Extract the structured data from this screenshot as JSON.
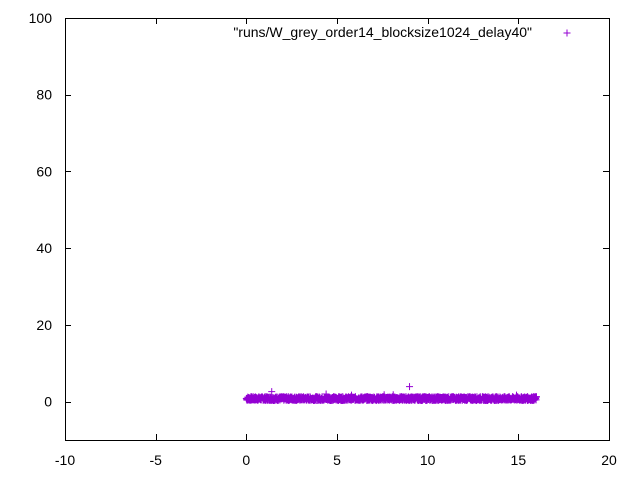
{
  "chart_data": {
    "type": "scatter",
    "xlim": [
      -10,
      20
    ],
    "ylim": [
      -10,
      100
    ],
    "xticks": [
      -10,
      -5,
      0,
      5,
      10,
      15,
      20
    ],
    "yticks": [
      0,
      20,
      40,
      60,
      80,
      100
    ],
    "xtick_labels": [
      "-10",
      "-5",
      "0",
      "5",
      "10",
      "15",
      "20"
    ],
    "ytick_labels": [
      "0",
      "20",
      "40",
      "60",
      "80",
      "100"
    ],
    "grid": false,
    "legend_position": "top-right",
    "series": [
      {
        "name": "\"runs/W_grey_order14_blocksize1024_delay40\"",
        "color": "#9400d3",
        "marker": "plus",
        "dense_band": {
          "x_range": [
            0.0,
            16.0
          ],
          "y_range": [
            0.3,
            1.3
          ]
        },
        "outliers": [
          {
            "x": 1.4,
            "y": 2.6
          },
          {
            "x": 4.4,
            "y": 2.0
          },
          {
            "x": 5.8,
            "y": 1.7
          },
          {
            "x": 7.6,
            "y": 1.8
          },
          {
            "x": 8.1,
            "y": 1.8
          },
          {
            "x": 9.0,
            "y": 3.9
          },
          {
            "x": 14.9,
            "y": 1.7
          }
        ]
      }
    ]
  }
}
